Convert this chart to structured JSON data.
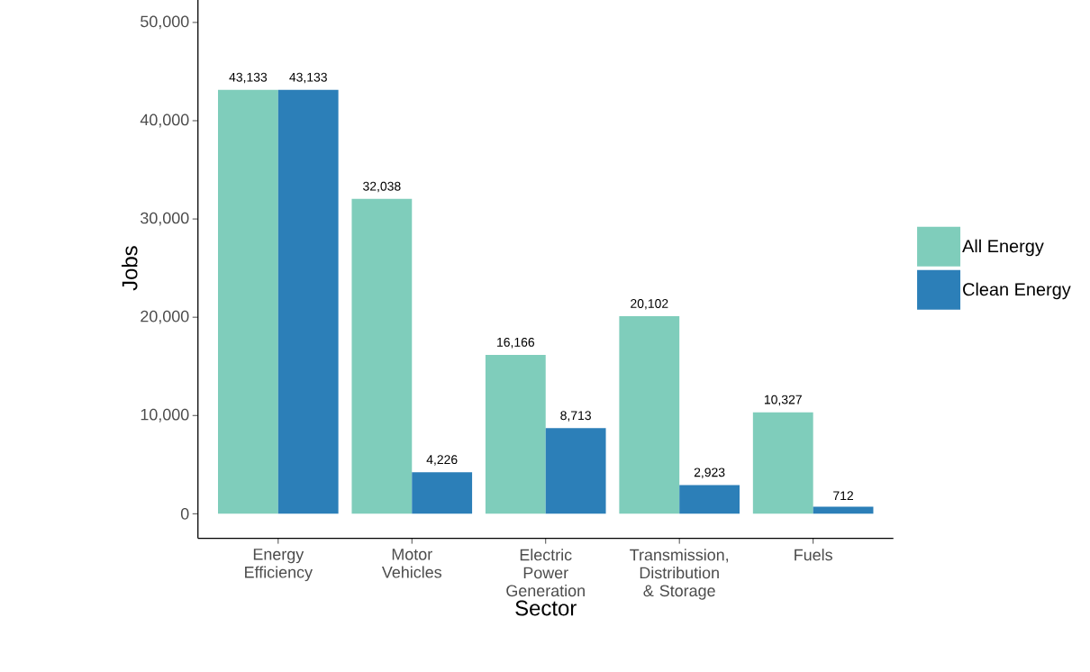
{
  "chart_data": {
    "type": "bar",
    "xlabel": "Sector",
    "ylabel": "Jobs",
    "categories": [
      "Energy Efficiency",
      "Motor Vehicles",
      "Electric Power Generation",
      "Transmission, Distribution & Storage",
      "Fuels"
    ],
    "series": [
      {
        "name": "All Energy",
        "color": "#7fcdbb",
        "values": [
          43133,
          32038,
          16166,
          20102,
          10327
        ],
        "value_labels": [
          "43,133",
          "32,038",
          "16,166",
          "20,102",
          "10,327"
        ]
      },
      {
        "name": "Clean Energy",
        "color": "#2c7fb8",
        "values": [
          43133,
          4226,
          8713,
          2923,
          712
        ],
        "value_labels": [
          "43,133",
          "4,226",
          "8,713",
          "2,923",
          "712"
        ]
      }
    ],
    "ylim": [
      -2500,
      52500
    ],
    "yticks": [
      {
        "value": 0,
        "label": "0"
      },
      {
        "value": 10000,
        "label": "10,000"
      },
      {
        "value": 20000,
        "label": "20,000"
      },
      {
        "value": 30000,
        "label": "30,000"
      },
      {
        "value": 40000,
        "label": "40,000"
      },
      {
        "value": 50000,
        "label": "50,000"
      }
    ],
    "grid": false,
    "legend": "right"
  }
}
